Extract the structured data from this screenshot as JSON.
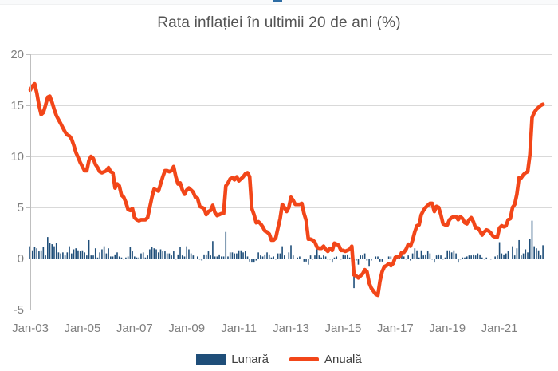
{
  "header": {
    "title": "Rata inflației în ultimii 20 de ani (%)"
  },
  "top_accent": {
    "color": "#2e6da4"
  },
  "legend": {
    "items": [
      {
        "label": "Lunară",
        "swatch": "bar",
        "color": "#1f4e79"
      },
      {
        "label": "Anuală",
        "swatch": "line",
        "color": "#f24619"
      }
    ]
  },
  "chart_data": {
    "type": "combo-bar-line",
    "title": "Rata inflației în ultimii 20 de ani (%)",
    "xlabel": "",
    "ylabel": "",
    "x_start_month": "Jan-03",
    "x_end_month": "Sep-22",
    "months_span": 240,
    "grid": true,
    "legend_position": "bottom",
    "ylim": [
      -5,
      20
    ],
    "y_ticks": [
      -5,
      0,
      5,
      10,
      15,
      20
    ],
    "x_ticks": [
      {
        "label": "Jan-03",
        "month_index": 0
      },
      {
        "label": "Jan-05",
        "month_index": 24
      },
      {
        "label": "Jan-07",
        "month_index": 48
      },
      {
        "label": "Jan-09",
        "month_index": 72
      },
      {
        "label": "Jan-11",
        "month_index": 96
      },
      {
        "label": "Jan-13",
        "month_index": 120
      },
      {
        "label": "Jan-15",
        "month_index": 144
      },
      {
        "label": "Jan-17",
        "month_index": 168
      },
      {
        "label": "Jan-19",
        "month_index": 192
      },
      {
        "label": "Jan-21",
        "month_index": 216
      }
    ],
    "colors": {
      "grid": "#d9d9d9",
      "axis": "#bfbfbf",
      "tick_labels": "#7f7f7f",
      "title": "#545454"
    },
    "series": [
      {
        "name": "Lunară",
        "type": "bar",
        "color": "#1f4e79",
        "values": [
          1.2,
          0.8,
          1.1,
          1.0,
          0.7,
          0.8,
          1.1,
          0.3,
          2.1,
          1.5,
          1.4,
          1.2,
          1.5,
          0.6,
          0.5,
          0.6,
          0.3,
          0.6,
          1.2,
          0.5,
          0.9,
          1.0,
          0.8,
          0.7,
          0.8,
          0.6,
          0.3,
          1.8,
          0.3,
          0.3,
          1.0,
          0.1,
          0.6,
          0.9,
          1.2,
          0.5,
          1.0,
          0.2,
          0.2,
          0.4,
          0.6,
          0.2,
          0.1,
          -0.1,
          0.1,
          0.2,
          1.1,
          0.7,
          0.2,
          0.1,
          0.1,
          0.5,
          0.6,
          0.1,
          0.3,
          0.9,
          1.1,
          1.0,
          0.9,
          0.6,
          0.9,
          0.7,
          0.7,
          0.5,
          0.5,
          0.3,
          0.7,
          -0.1,
          0.4,
          1.1,
          0.3,
          0.2,
          1.2,
          0.9,
          0.5,
          0.3,
          0.0,
          0.2,
          -0.1,
          -0.2,
          0.4,
          0.4,
          0.7,
          0.3,
          1.7,
          0.2,
          0.2,
          0.4,
          0.2,
          0.2,
          2.6,
          0.2,
          0.6,
          0.6,
          0.5,
          0.5,
          0.8,
          0.8,
          0.6,
          0.7,
          0.2,
          -0.3,
          -0.4,
          -0.4,
          -0.2,
          0.6,
          0.3,
          0.2,
          0.4,
          0.6,
          0.4,
          0.1,
          0.2,
          -0.1,
          0.5,
          0.5,
          1.2,
          0.3,
          0.0,
          0.6,
          1.3,
          0.3,
          0.0,
          0.1,
          0.2,
          0.0,
          -0.3,
          -0.3,
          -0.6,
          0.3,
          -0.1,
          0.3,
          0.9,
          0.3,
          0.1,
          0.3,
          0.2,
          -0.1,
          -0.1,
          -0.4,
          0.1,
          0.2,
          0.0,
          -0.1,
          0.4,
          0.3,
          0.4,
          0.1,
          0.5,
          -2.9,
          -0.2,
          -0.6,
          0.3,
          0.3,
          0.5,
          -0.2,
          -0.8,
          -0.2,
          0.0,
          0.2,
          0.2,
          -0.3,
          -0.3,
          0.0,
          0.0,
          0.2,
          0.2,
          0.0,
          -0.2,
          0.1,
          0.1,
          0.5,
          0.2,
          -0.1,
          0.3,
          -0.2,
          0.5,
          1.0,
          0.8,
          0.1,
          0.8,
          0.3,
          0.4,
          0.7,
          0.5,
          -0.1,
          -0.4,
          0.3,
          0.4,
          0.3,
          -0.1,
          0.1,
          0.8,
          0.8,
          0.6,
          0.8,
          0.5,
          -0.4,
          -0.1,
          0.1,
          0.1,
          0.2,
          0.3,
          0.3,
          0.4,
          0.3,
          0.5,
          0.4,
          0.1,
          -0.1,
          0.1,
          0.0,
          -0.1,
          0.0,
          0.2,
          0.3,
          1.6,
          0.5,
          0.4,
          0.5,
          0.7,
          0.0,
          1.2,
          0.3,
          1.0,
          1.8,
          0.3,
          0.5,
          0.9,
          0.6,
          1.9,
          3.7,
          1.2,
          1.0,
          0.8,
          0.3,
          1.3
        ]
      },
      {
        "name": "Anuală",
        "type": "line",
        "color": "#f24619",
        "values": [
          16.5,
          16.9,
          17.1,
          16.2,
          15.0,
          14.1,
          14.3,
          15.0,
          15.8,
          15.9,
          15.3,
          14.6,
          14.0,
          13.6,
          13.2,
          12.8,
          12.4,
          12.1,
          12.0,
          11.7,
          11.1,
          10.4,
          9.9,
          9.4,
          9.0,
          8.6,
          8.6,
          9.6,
          10.0,
          9.8,
          9.2,
          8.9,
          8.5,
          8.4,
          8.5,
          8.6,
          8.9,
          8.5,
          8.4,
          6.9,
          7.3,
          7.1,
          6.2,
          6.0,
          5.5,
          4.8,
          4.7,
          4.9,
          4.0,
          3.8,
          3.7,
          3.8,
          3.8,
          3.8,
          4.0,
          5.0,
          6.0,
          6.8,
          6.7,
          6.6,
          7.3,
          8.0,
          8.6,
          8.6,
          8.5,
          8.6,
          9.0,
          8.0,
          7.3,
          7.4,
          6.7,
          6.3,
          6.7,
          6.9,
          6.7,
          6.5,
          6.0,
          5.9,
          5.1,
          5.0,
          4.9,
          4.3,
          4.6,
          4.7,
          5.2,
          4.5,
          4.2,
          4.3,
          4.4,
          4.4,
          7.1,
          7.4,
          7.8,
          7.9,
          7.7,
          8.0,
          7.6,
          7.8,
          8.0,
          8.3,
          8.4,
          8.0,
          4.9,
          4.3,
          3.5,
          3.6,
          3.4,
          3.1,
          2.7,
          2.6,
          2.4,
          1.8,
          1.8,
          2.0,
          3.0,
          3.9,
          5.3,
          5.0,
          4.6,
          5.0,
          6.0,
          5.7,
          5.3,
          5.3,
          5.3,
          5.4,
          4.4,
          3.7,
          1.9,
          1.9,
          1.8,
          1.6,
          1.1,
          1.0,
          1.0,
          1.2,
          0.9,
          0.7,
          1.0,
          0.8,
          1.5,
          1.4,
          1.3,
          0.8,
          0.8,
          0.7,
          0.8,
          0.9,
          1.2,
          -1.6,
          -1.7,
          -1.9,
          -1.7,
          -1.5,
          -1.1,
          -1.3,
          -2.4,
          -2.9,
          -3.2,
          -3.5,
          -3.6,
          -2.2,
          -1.3,
          -0.8,
          -0.7,
          -0.5,
          -0.7,
          -0.5,
          0.1,
          0.2,
          0.2,
          0.6,
          0.6,
          0.9,
          1.4,
          1.2,
          1.8,
          2.6,
          3.2,
          3.3,
          4.3,
          4.7,
          5.0,
          5.2,
          5.4,
          5.4,
          4.6,
          5.1,
          5.0,
          4.3,
          3.4,
          3.3,
          3.3,
          3.8,
          4.0,
          4.1,
          4.1,
          3.8,
          4.1,
          3.9,
          3.5,
          3.4,
          3.8,
          4.0,
          3.6,
          3.0,
          3.0,
          2.7,
          2.3,
          2.6,
          2.8,
          2.7,
          2.5,
          2.2,
          2.1,
          2.1,
          3.0,
          3.2,
          3.1,
          3.2,
          3.8,
          3.9,
          5.0,
          5.3,
          6.3,
          7.9,
          7.9,
          8.2,
          8.4,
          8.5,
          10.2,
          13.8,
          14.3,
          14.6,
          14.8,
          15.0,
          15.1
        ]
      }
    ]
  }
}
